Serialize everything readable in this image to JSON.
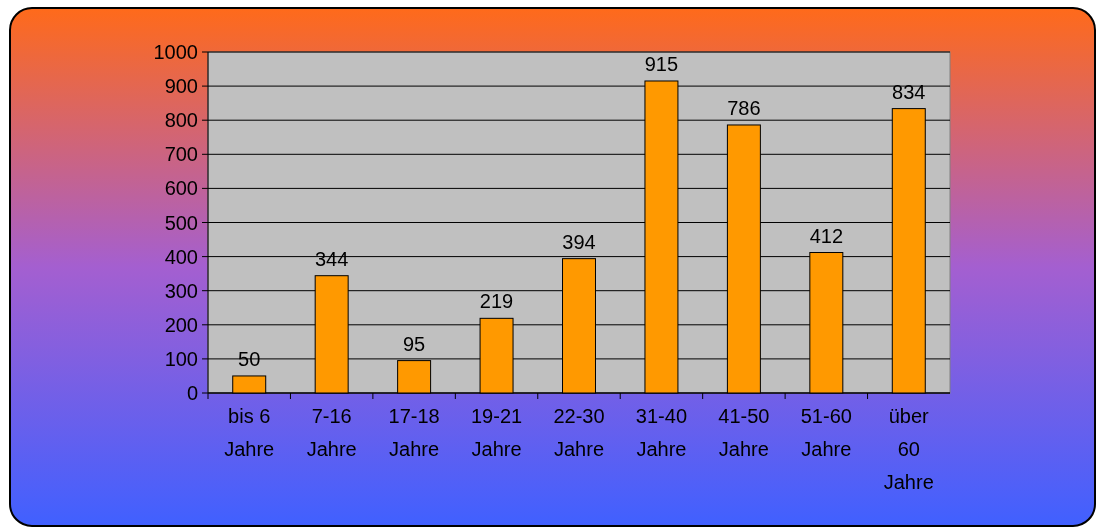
{
  "chart_data": {
    "type": "bar",
    "categories": [
      "bis 6 Jahre",
      "7-16 Jahre",
      "17-18 Jahre",
      "19-21 Jahre",
      "22-30 Jahre",
      "31-40 Jahre",
      "41-50 Jahre",
      "51-60 Jahre",
      "über 60 Jahre"
    ],
    "values": [
      50,
      344,
      95,
      219,
      394,
      915,
      786,
      412,
      834
    ],
    "color": "#ff9900",
    "ylim": [
      0,
      1000
    ],
    "yticks": [
      0,
      100,
      200,
      300,
      400,
      500,
      600,
      700,
      800,
      900,
      1000
    ],
    "grid": "y",
    "data_labels": true
  }
}
